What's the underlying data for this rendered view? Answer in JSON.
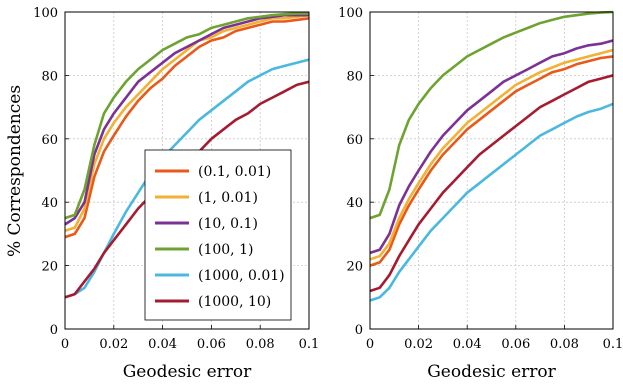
{
  "ylabel": "% Correspondences",
  "chart_data": [
    {
      "type": "line",
      "panel": "left",
      "xlabel": "Geodesic error",
      "ylabel": "% Correspondences",
      "xlim": [
        0,
        0.1
      ],
      "ylim": [
        0,
        100
      ],
      "xticks": [
        "0",
        "0.02",
        "0.04",
        "0.06",
        "0.08",
        "0.1"
      ],
      "yticks": [
        "0",
        "20",
        "40",
        "60",
        "80",
        "100"
      ],
      "grid": true,
      "legend_position": "bottom-right",
      "x": [
        0,
        0.004,
        0.008,
        0.012,
        0.016,
        0.02,
        0.025,
        0.03,
        0.035,
        0.04,
        0.045,
        0.05,
        0.055,
        0.06,
        0.065,
        0.07,
        0.075,
        0.08,
        0.085,
        0.09,
        0.095,
        0.1
      ],
      "series": [
        {
          "name": "(0.1, 0.01)",
          "color": "#e8591a",
          "values": [
            29,
            30,
            35,
            48,
            56,
            61,
            67,
            72,
            76,
            79,
            83,
            86,
            89,
            91,
            92,
            94,
            95,
            96,
            97,
            97,
            97.5,
            98
          ]
        },
        {
          "name": "(1, 0.01)",
          "color": "#f2b134",
          "values": [
            31,
            32,
            38,
            52,
            60,
            65,
            70,
            74,
            78,
            82,
            85,
            88,
            91,
            92,
            94,
            95,
            96,
            97,
            98,
            98,
            98.5,
            99
          ]
        },
        {
          "name": "(10, 0.1)",
          "color": "#7b3294",
          "values": [
            33,
            35,
            40,
            55,
            63,
            68,
            73,
            78,
            81,
            84,
            87,
            89,
            91,
            93,
            95,
            96,
            97,
            98,
            98.5,
            99,
            99,
            99
          ]
        },
        {
          "name": "(100, 1)",
          "color": "#6ea332",
          "values": [
            35,
            36,
            44,
            58,
            68,
            73,
            78,
            82,
            85,
            88,
            90,
            92,
            93,
            95,
            96,
            97,
            98,
            98.5,
            99,
            99.3,
            99.5,
            99.5
          ]
        },
        {
          "name": "(1000, 0.01)",
          "color": "#4bb8e0",
          "values": [
            10,
            11,
            13,
            18,
            24,
            30,
            37,
            43,
            49,
            54,
            58,
            62,
            66,
            69,
            72,
            75,
            78,
            80,
            82,
            83,
            84,
            85
          ]
        },
        {
          "name": "(1000, 10)",
          "color": "#a51c30",
          "values": [
            10,
            11,
            15,
            19,
            24,
            28,
            33,
            38,
            42,
            46,
            50,
            53,
            56,
            60,
            63,
            66,
            68,
            71,
            73,
            75,
            77,
            78
          ]
        }
      ]
    },
    {
      "type": "line",
      "panel": "right",
      "xlabel": "Geodesic error",
      "xlim": [
        0,
        0.1
      ],
      "ylim": [
        0,
        100
      ],
      "xticks": [
        "0",
        "0.02",
        "0.04",
        "0.06",
        "0.08",
        "0.1"
      ],
      "yticks": [
        "0",
        "20",
        "40",
        "60",
        "80",
        "100"
      ],
      "grid": true,
      "x": [
        0,
        0.004,
        0.008,
        0.012,
        0.016,
        0.02,
        0.025,
        0.03,
        0.035,
        0.04,
        0.045,
        0.05,
        0.055,
        0.06,
        0.065,
        0.07,
        0.075,
        0.08,
        0.085,
        0.09,
        0.095,
        0.1
      ],
      "series": [
        {
          "name": "(0.1, 0.01)",
          "color": "#e8591a",
          "values": [
            20,
            21,
            25,
            33,
            39,
            44,
            50,
            55,
            59,
            63,
            66,
            69,
            72,
            75,
            77,
            79,
            81,
            82,
            83.5,
            84.5,
            85.5,
            86
          ]
        },
        {
          "name": "(1, 0.01)",
          "color": "#f2b134",
          "values": [
            22,
            23,
            27,
            35,
            41,
            46,
            52,
            57,
            61,
            65,
            68,
            71,
            74,
            77,
            79,
            81,
            82.5,
            84,
            85,
            86,
            87,
            88
          ]
        },
        {
          "name": "(10, 0.1)",
          "color": "#7b3294",
          "values": [
            24,
            25,
            30,
            39,
            45,
            50,
            56,
            61,
            65,
            69,
            72,
            75,
            78,
            80,
            82,
            84,
            86,
            87,
            88.5,
            89.5,
            90,
            91
          ]
        },
        {
          "name": "(100, 1)",
          "color": "#6ea332",
          "values": [
            35,
            36,
            44,
            58,
            66,
            71,
            76,
            80,
            83,
            86,
            88,
            90,
            92,
            93.5,
            95,
            96.5,
            97.5,
            98.5,
            99,
            99.5,
            99.8,
            100
          ]
        },
        {
          "name": "(1000, 0.01)",
          "color": "#4bb8e0",
          "values": [
            9,
            10,
            13,
            18,
            22,
            26,
            31,
            35,
            39,
            43,
            46,
            49,
            52,
            55,
            58,
            61,
            63,
            65,
            67,
            68.5,
            69.5,
            71
          ]
        },
        {
          "name": "(1000, 10)",
          "color": "#a51c30",
          "values": [
            12,
            13,
            17,
            23,
            28,
            33,
            38,
            43,
            47,
            51,
            55,
            58,
            61,
            64,
            67,
            70,
            72,
            74,
            76,
            78,
            79,
            80
          ]
        }
      ]
    }
  ]
}
